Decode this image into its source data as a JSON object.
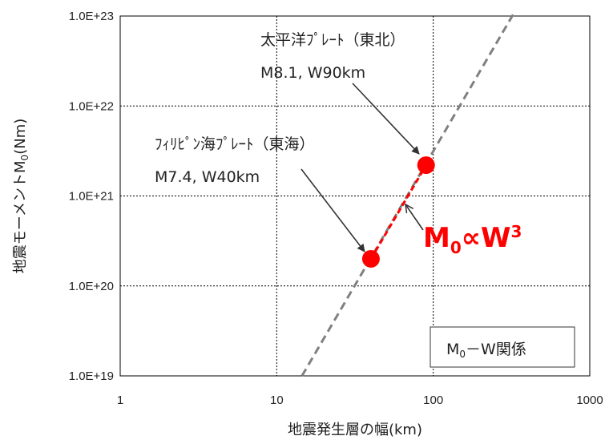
{
  "chart_data": {
    "type": "scatter",
    "title": "",
    "xlabel": "地震発生層の幅(km)",
    "ylabel_main": "地震モーメントM",
    "ylabel_sub": "0",
    "ylabel_unit": "(Nm)",
    "xscale": "log",
    "yscale": "log",
    "xlim": [
      1,
      1000
    ],
    "ylim": [
      1e+19,
      1e+23
    ],
    "grid": true,
    "x_ticks": [
      {
        "value": 1,
        "label": "1"
      },
      {
        "value": 10,
        "label": "10"
      },
      {
        "value": 100,
        "label": "100"
      },
      {
        "value": 1000,
        "label": "1000"
      }
    ],
    "y_ticks": [
      {
        "value": 1e+19,
        "label": "1.0E+19"
      },
      {
        "value": 1e+20,
        "label": "1.0E+20"
      },
      {
        "value": 1e+21,
        "label": "1.0E+21"
      },
      {
        "value": 1e+22,
        "label": "1.0E+22"
      },
      {
        "value": 1e+23,
        "label": "1.0E+23"
      }
    ],
    "points": [
      {
        "x": 40,
        "y": 2e+20,
        "line1": "ﾌｨﾘﾋﾟﾝ海ﾌﾟﾚｰﾄ（東海）",
        "line2": "M7.4, W40km"
      },
      {
        "x": 90,
        "y": 2.2e+21,
        "line1": "太平洋ﾌﾟﾚｰﾄ（東北）",
        "line2": "M8.1, W90km"
      }
    ],
    "trend_line": {
      "x": [
        14.5,
        330
      ],
      "y": [
        1e+19,
        1.1e+23
      ],
      "style": "dashed",
      "color": "#808080"
    },
    "segment": {
      "x": [
        40,
        90
      ],
      "y": [
        2e+20,
        2.2e+21
      ],
      "style": "dashed",
      "color": "#ff0000"
    },
    "point_color": "#ff0000",
    "formula": {
      "base": "M",
      "sub": "0",
      "mid": "∝W",
      "sup": "3"
    },
    "legend": {
      "m": "M",
      "sub": "0",
      "rest": "－W関係",
      "placement": "bottom-right"
    }
  }
}
